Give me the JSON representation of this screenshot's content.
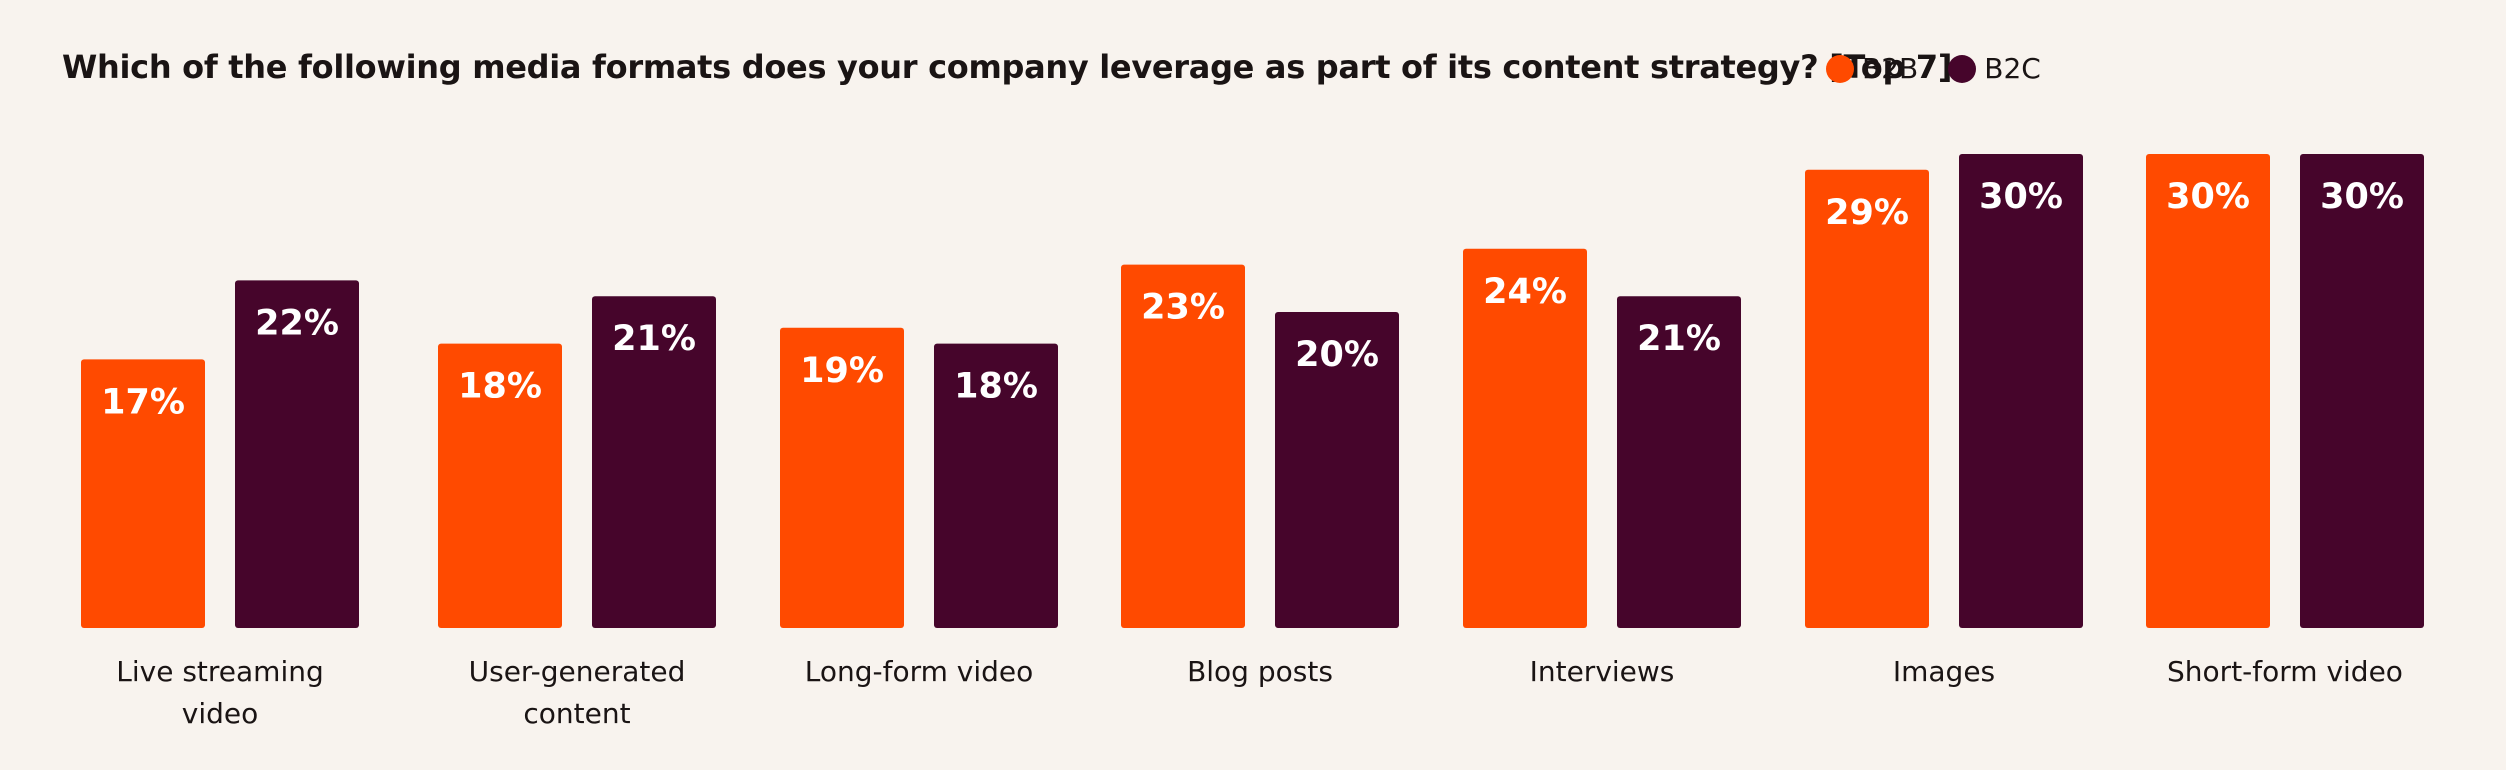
{
  "chart_data": {
    "type": "bar",
    "title": "Which of the following media formats does your company leverage as part of its content strategy? [Top 7]",
    "categories": [
      [
        "Live streaming",
        "video"
      ],
      [
        "User-generated",
        "content"
      ],
      [
        "Long-form video"
      ],
      [
        "Blog posts"
      ],
      [
        "Interviews"
      ],
      [
        "Images"
      ],
      [
        "Short-form video"
      ]
    ],
    "series": [
      {
        "name": "B2B",
        "color": "#ff4a00",
        "values": [
          17,
          18,
          19,
          23,
          24,
          29,
          30
        ]
      },
      {
        "name": "B2C",
        "color": "#46052b",
        "values": [
          22,
          21,
          18,
          20,
          21,
          30,
          30
        ]
      }
    ],
    "value_suffix": "%",
    "legend": "top-right",
    "grid": false
  }
}
